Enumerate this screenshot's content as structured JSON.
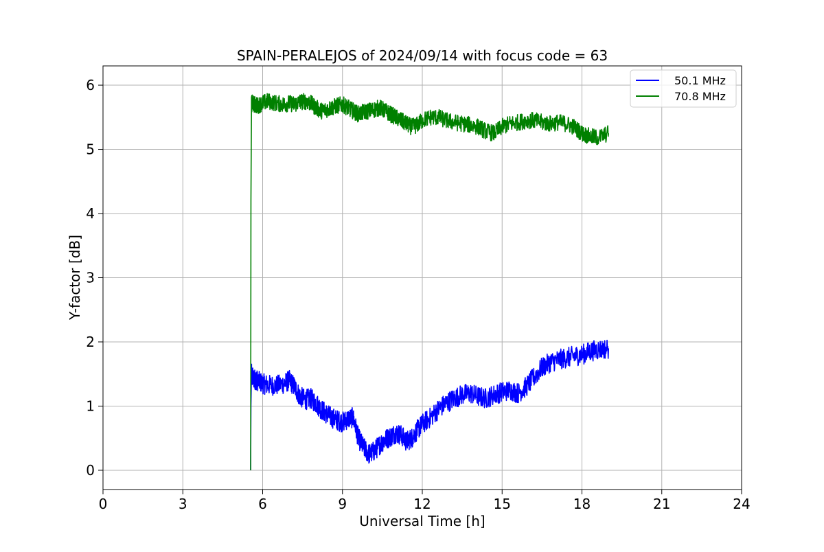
{
  "chart_data": {
    "type": "line",
    "title": "SPAIN-PERALEJOS of 2024/09/14 with focus code = 63",
    "xlabel": "Universal Time [h]",
    "ylabel": "Y-factor [dB]",
    "xlim": [
      0,
      24
    ],
    "ylim": [
      -0.3,
      6.3
    ],
    "xticks": [
      0,
      3,
      6,
      9,
      12,
      15,
      18,
      21,
      24
    ],
    "yticks": [
      0,
      1,
      2,
      3,
      4,
      5,
      6
    ],
    "grid": true,
    "legend_position": "top-right",
    "series": [
      {
        "name": "50.1 MHz",
        "color": "#0000ff",
        "x": [
          5.55,
          5.56,
          5.58,
          5.6,
          5.7,
          5.8,
          6.0,
          6.2,
          6.5,
          6.8,
          7.0,
          7.2,
          7.4,
          7.6,
          7.8,
          8.0,
          8.2,
          8.4,
          8.6,
          8.8,
          9.0,
          9.2,
          9.4,
          9.6,
          9.8,
          10.0,
          10.2,
          10.4,
          10.6,
          10.8,
          11.0,
          11.2,
          11.4,
          11.6,
          11.8,
          12.0,
          12.3,
          12.6,
          12.9,
          13.2,
          13.5,
          13.8,
          14.1,
          14.4,
          14.7,
          15.0,
          15.3,
          15.6,
          15.9,
          16.2,
          16.5,
          16.8,
          17.1,
          17.4,
          17.7,
          18.0,
          18.3,
          18.6,
          19.0
        ],
        "y": [
          0.0,
          1.0,
          1.5,
          1.45,
          1.42,
          1.4,
          1.35,
          1.33,
          1.32,
          1.35,
          1.4,
          1.3,
          1.15,
          1.1,
          1.12,
          1.05,
          0.95,
          0.88,
          0.82,
          0.78,
          0.75,
          0.8,
          0.82,
          0.5,
          0.35,
          0.25,
          0.3,
          0.4,
          0.48,
          0.52,
          0.58,
          0.55,
          0.45,
          0.5,
          0.62,
          0.72,
          0.82,
          0.95,
          1.05,
          1.12,
          1.18,
          1.2,
          1.15,
          1.12,
          1.18,
          1.22,
          1.25,
          1.2,
          1.3,
          1.45,
          1.6,
          1.68,
          1.72,
          1.75,
          1.78,
          1.8,
          1.85,
          1.88,
          1.9
        ]
      },
      {
        "name": "70.8 MHz",
        "color": "#008000",
        "x": [
          5.55,
          5.56,
          5.58,
          5.6,
          5.7,
          5.8,
          6.0,
          6.2,
          6.5,
          6.8,
          7.0,
          7.2,
          7.4,
          7.6,
          7.8,
          8.0,
          8.2,
          8.4,
          8.6,
          8.8,
          9.0,
          9.2,
          9.4,
          9.6,
          9.8,
          10.0,
          10.2,
          10.4,
          10.6,
          10.8,
          11.0,
          11.2,
          11.4,
          11.6,
          11.8,
          12.0,
          12.3,
          12.6,
          12.9,
          13.2,
          13.5,
          13.8,
          14.1,
          14.4,
          14.7,
          15.0,
          15.3,
          15.6,
          15.9,
          16.2,
          16.5,
          16.8,
          17.1,
          17.4,
          17.7,
          18.0,
          18.3,
          18.6,
          19.0
        ],
        "y": [
          0.0,
          4.2,
          5.7,
          5.72,
          5.7,
          5.68,
          5.72,
          5.75,
          5.72,
          5.7,
          5.72,
          5.7,
          5.74,
          5.75,
          5.72,
          5.65,
          5.6,
          5.62,
          5.65,
          5.68,
          5.7,
          5.65,
          5.6,
          5.55,
          5.58,
          5.6,
          5.62,
          5.65,
          5.6,
          5.55,
          5.5,
          5.45,
          5.4,
          5.35,
          5.38,
          5.45,
          5.5,
          5.5,
          5.45,
          5.42,
          5.4,
          5.38,
          5.35,
          5.28,
          5.25,
          5.35,
          5.4,
          5.42,
          5.45,
          5.45,
          5.42,
          5.4,
          5.42,
          5.4,
          5.35,
          5.25,
          5.2,
          5.18,
          5.25
        ]
      }
    ]
  }
}
